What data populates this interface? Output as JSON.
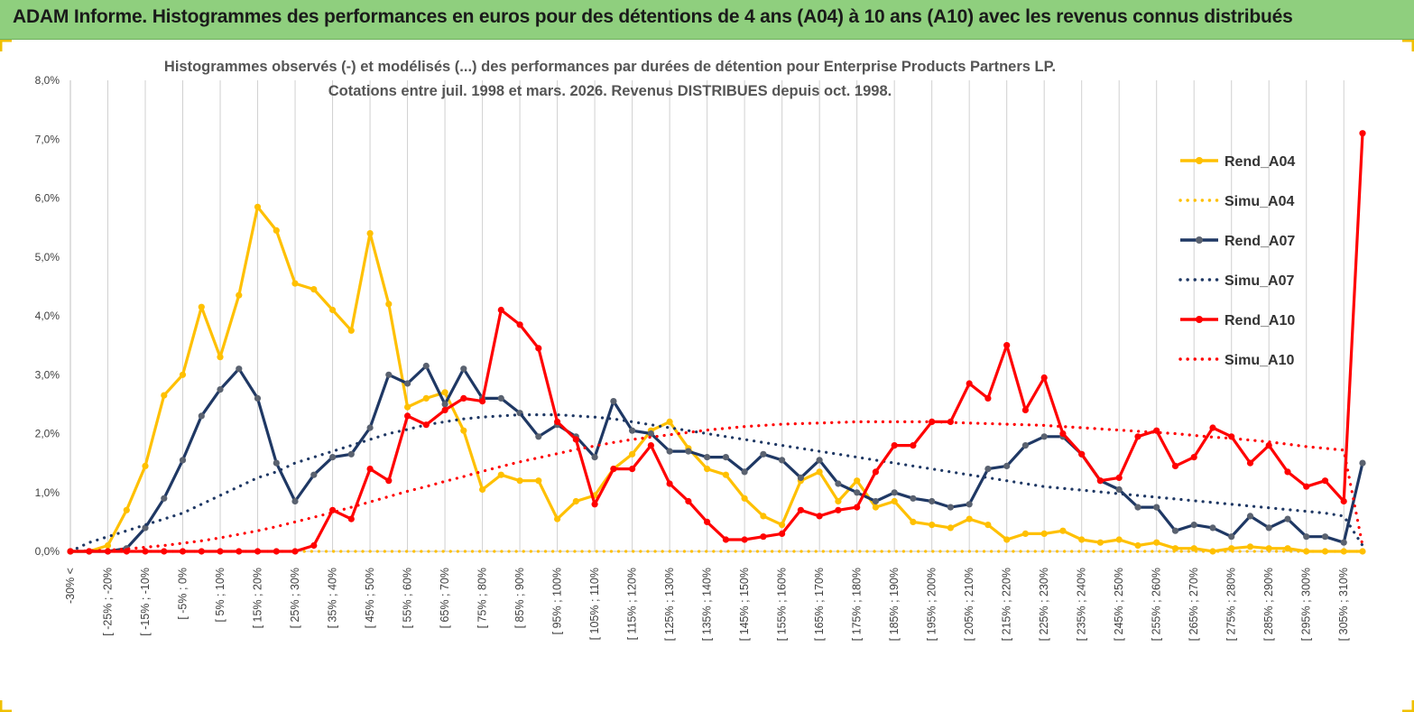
{
  "banner": {
    "title": "ADAM Informe. Histogrammes des performances en euros pour des détentions de 4 ans (A04) à 10 ans (A10) avec les revenus connus distribués"
  },
  "colors": {
    "banner": "#8fcf7e",
    "A04": "#ffc000",
    "A07": "#1f3864",
    "A10": "#ff0000",
    "grid": "#d0d0d0"
  },
  "chart_data": {
    "type": "line",
    "title_line1": "Histogrammes observés (-) et modélisés (...) des performances par durées de détention pour Enterprise Products Partners LP.",
    "title_line2": "Cotations entre juil. 1998 et mars. 2026. Revenus DISTRIBUES depuis oct. 1998.",
    "xlabel": "",
    "ylabel": "",
    "ylim": [
      0,
      8
    ],
    "y_ticks": [
      "0,0%",
      "1,0%",
      "2,0%",
      "3,0%",
      "4,0%",
      "5,0%",
      "6,0%",
      "7,0%",
      "8,0%"
    ],
    "grid": "vertical",
    "legend_position": "right",
    "x_labels": [
      "-30% <",
      "[ -25% ; -20%",
      "[ -15% ; -10%",
      "[ -5% ; 0%",
      "[ 5% ; 10%",
      "[ 15% ; 20%",
      "[ 25% ; 30%",
      "[ 35% ; 40%",
      "[ 45% ; 50%",
      "[ 55% ; 60%",
      "[ 65% ; 70%",
      "[ 75% ; 80%",
      "[ 85% ; 90%",
      "[ 95% ; 100%",
      "[ 105% ; 110%",
      "[ 115% ; 120%",
      "[ 125% ; 130%",
      "[ 135% ; 140%",
      "[ 145% ; 150%",
      "[ 155% ; 160%",
      "[ 165% ; 170%",
      "[ 175% ; 180%",
      "[ 185% ; 190%",
      "[ 195% ; 200%",
      "[ 205% ; 210%",
      "[ 215% ; 220%",
      "[ 225% ; 230%",
      "[ 235% ; 240%",
      "[ 245% ; 250%",
      "[ 255% ; 260%",
      "[ 265% ; 270%",
      "[ 275% ; 280%",
      "[ 285% ; 290%",
      "[ 295% ; 300%",
      "[ 305% ; 310%"
    ],
    "series": [
      {
        "name": "Rend_A04",
        "style": "solid",
        "color": "#ffc000",
        "values": [
          0,
          0,
          0.1,
          0.7,
          1.45,
          2.65,
          3,
          4.15,
          3.3,
          4.35,
          5.85,
          5.45,
          4.55,
          4.45,
          4.1,
          3.75,
          5.4,
          4.2,
          2.45,
          2.6,
          2.7,
          2.05,
          1.05,
          1.3,
          1.2,
          1.2,
          0.55,
          0.85,
          0.95,
          1.4,
          1.65,
          2.05,
          2.2,
          1.75,
          1.4,
          1.3,
          0.9,
          0.6,
          0.45,
          1.2,
          1.35,
          0.85,
          1.2,
          0.75,
          0.85,
          0.5,
          0.45,
          0.4,
          0.55,
          0.45,
          0.2,
          0.3,
          0.3,
          0.35,
          0.2,
          0.15,
          0.2,
          0.1,
          0.15,
          0.05,
          0.05,
          0,
          0.05,
          0.08,
          0.05,
          0.05,
          0,
          0,
          0,
          0
        ]
      },
      {
        "name": "Simu_A04",
        "style": "dotted",
        "color": "#ffc000",
        "values": [
          0,
          0,
          0,
          0,
          0,
          0,
          0,
          0,
          0,
          0,
          0,
          0,
          0,
          0,
          0,
          0,
          0,
          0,
          0,
          0,
          0,
          0,
          0,
          0,
          0,
          0,
          0,
          0,
          0,
          0,
          0,
          0,
          0,
          0,
          0,
          0,
          0,
          0,
          0,
          0,
          0,
          0,
          0,
          0,
          0,
          0,
          0,
          0,
          0,
          0,
          0,
          0,
          0,
          0,
          0,
          0,
          0,
          0,
          0,
          0,
          0,
          0,
          0,
          0,
          0,
          0,
          0,
          0,
          0,
          0
        ]
      },
      {
        "name": "Rend_A07",
        "style": "solid",
        "color": "#1f3864",
        "values": [
          0,
          0,
          0,
          0.05,
          0.4,
          0.9,
          1.55,
          2.3,
          2.75,
          3.1,
          2.6,
          1.5,
          0.85,
          1.3,
          1.6,
          1.65,
          2.1,
          3,
          2.85,
          3.15,
          2.5,
          3.1,
          2.6,
          2.6,
          2.35,
          1.95,
          2.15,
          1.95,
          1.6,
          2.55,
          2.05,
          2,
          1.7,
          1.7,
          1.6,
          1.6,
          1.35,
          1.65,
          1.55,
          1.25,
          1.55,
          1.15,
          1,
          0.85,
          1,
          0.9,
          0.85,
          0.75,
          0.8,
          1.4,
          1.45,
          1.8,
          1.95,
          1.95,
          1.65,
          1.2,
          1.05,
          0.75,
          0.75,
          0.35,
          0.45,
          0.4,
          0.25,
          0.6,
          0.4,
          0.55,
          0.25,
          0.25,
          0.15,
          1.5
        ]
      },
      {
        "name": "Simu_A07",
        "style": "dotted",
        "color": "#1f3864",
        "values": [
          0,
          0.15,
          0.25,
          0.35,
          0.45,
          0.55,
          0.65,
          0.8,
          0.95,
          1.1,
          1.25,
          1.35,
          1.5,
          1.6,
          1.7,
          1.8,
          1.9,
          2,
          2.07,
          2.15,
          2.2,
          2.25,
          2.28,
          2.3,
          2.32,
          2.32,
          2.32,
          2.3,
          2.28,
          2.25,
          2.2,
          2.15,
          2.1,
          2.05,
          2,
          1.95,
          1.9,
          1.85,
          1.8,
          1.75,
          1.7,
          1.65,
          1.6,
          1.55,
          1.5,
          1.45,
          1.4,
          1.35,
          1.3,
          1.25,
          1.2,
          1.15,
          1.1,
          1.07,
          1.04,
          1.01,
          0.98,
          0.95,
          0.92,
          0.89,
          0.86,
          0.83,
          0.8,
          0.77,
          0.74,
          0.71,
          0.68,
          0.65,
          0.6,
          0.1
        ]
      },
      {
        "name": "Rend_A10",
        "style": "solid",
        "color": "#ff0000",
        "values": [
          0,
          0,
          0,
          0,
          0,
          0,
          0,
          0,
          0,
          0,
          0,
          0,
          0,
          0.1,
          0.7,
          0.55,
          1.4,
          1.2,
          2.3,
          2.15,
          2.4,
          2.6,
          2.55,
          4.1,
          3.85,
          3.45,
          2.2,
          1.9,
          0.8,
          1.4,
          1.4,
          1.8,
          1.15,
          0.85,
          0.5,
          0.2,
          0.2,
          0.25,
          0.3,
          0.7,
          0.6,
          0.7,
          0.75,
          1.35,
          1.8,
          1.8,
          2.2,
          2.2,
          2.85,
          2.6,
          3.5,
          2.4,
          2.95,
          2,
          1.65,
          1.2,
          1.25,
          1.95,
          2.05,
          1.45,
          1.6,
          2.1,
          1.95,
          1.5,
          1.8,
          1.35,
          1.1,
          1.2,
          0.85,
          7.1
        ]
      },
      {
        "name": "Simu_A10",
        "style": "dotted",
        "color": "#ff0000",
        "values": [
          0,
          0.01,
          0.02,
          0.04,
          0.07,
          0.1,
          0.14,
          0.18,
          0.23,
          0.29,
          0.35,
          0.42,
          0.5,
          0.58,
          0.66,
          0.75,
          0.84,
          0.93,
          1.02,
          1.1,
          1.19,
          1.27,
          1.36,
          1.44,
          1.52,
          1.59,
          1.66,
          1.73,
          1.79,
          1.85,
          1.9,
          1.94,
          1.98,
          2.02,
          2.06,
          2.09,
          2.12,
          2.14,
          2.16,
          2.17,
          2.18,
          2.19,
          2.2,
          2.2,
          2.2,
          2.2,
          2.2,
          2.19,
          2.18,
          2.17,
          2.16,
          2.15,
          2.14,
          2.12,
          2.1,
          2.08,
          2.06,
          2.04,
          2.02,
          2,
          1.97,
          1.94,
          1.92,
          1.89,
          1.86,
          1.82,
          1.78,
          1.75,
          1.72,
          0.1
        ]
      }
    ]
  }
}
